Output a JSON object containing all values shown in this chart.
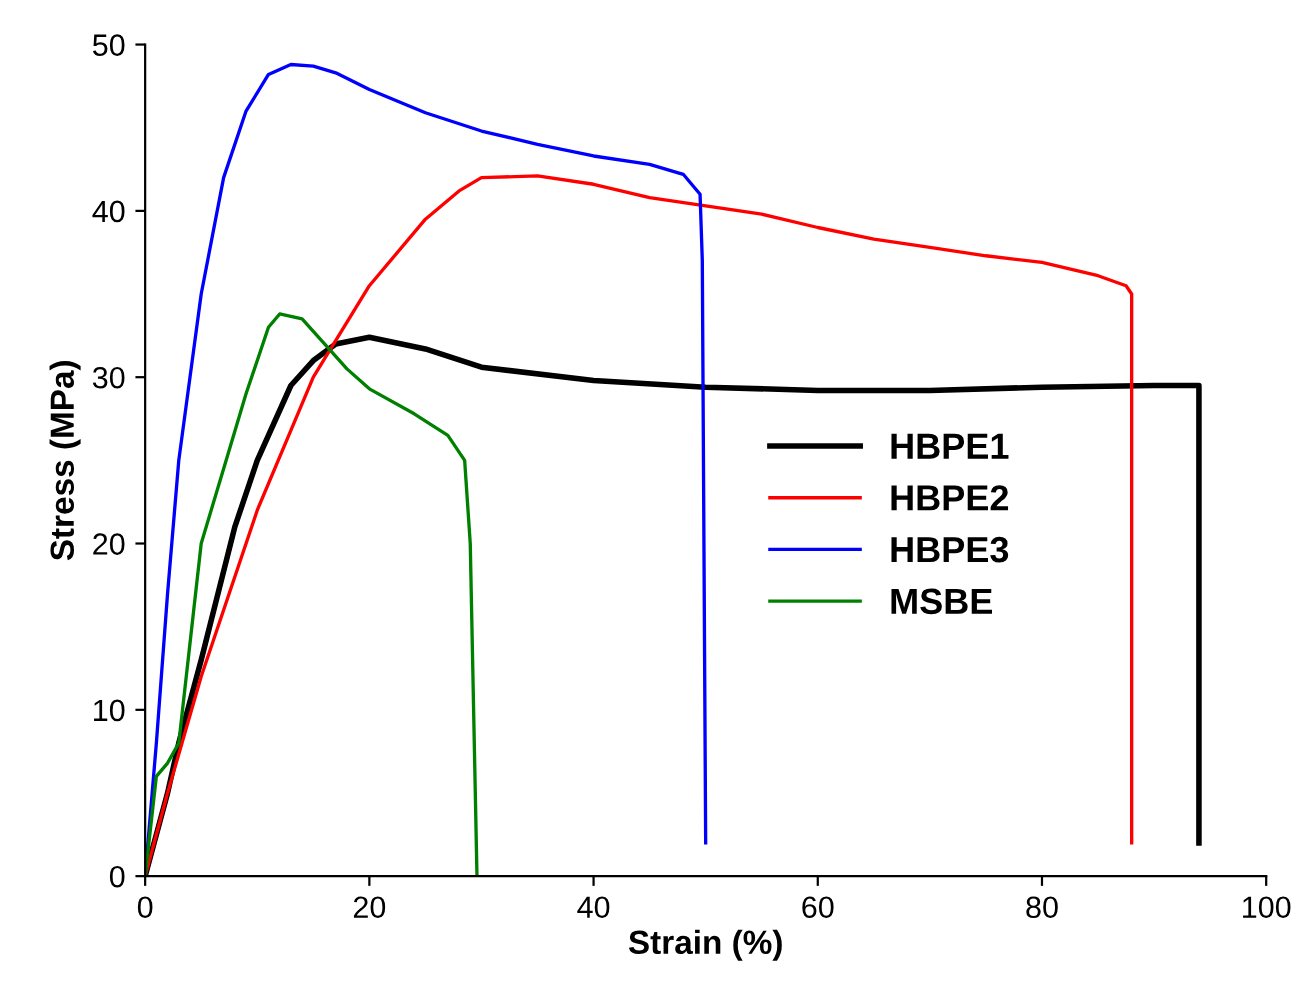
{
  "chart_data": {
    "type": "line",
    "xlabel": "Strain (%)",
    "ylabel": "Stress (MPa)",
    "xlim": [
      0,
      100
    ],
    "ylim": [
      0,
      50
    ],
    "xticks": [
      0,
      20,
      40,
      60,
      80,
      100
    ],
    "yticks": [
      0,
      10,
      20,
      30,
      40,
      50
    ],
    "grid": false,
    "legend": "right",
    "series": [
      {
        "name": "HBPE1",
        "color": "#000000",
        "x": [
          0,
          2,
          3,
          5,
          8,
          10,
          13,
          15,
          17,
          20,
          25,
          30,
          40,
          50,
          60,
          70,
          80,
          90,
          94,
          94
        ],
        "values": [
          0,
          5,
          8,
          13,
          21,
          25,
          29.5,
          31,
          32,
          32.4,
          31.7,
          30.6,
          29.8,
          29.4,
          29.2,
          29.2,
          29.4,
          29.5,
          29.5,
          2
        ]
      },
      {
        "name": "HBPE2",
        "color": "#ff0000",
        "x": [
          0,
          2,
          5,
          10,
          15,
          20,
          25,
          28,
          30,
          35,
          40,
          45,
          50,
          55,
          60,
          65,
          70,
          75,
          80,
          85,
          87.5,
          88,
          88
        ],
        "values": [
          0,
          5,
          12,
          22,
          30,
          35.5,
          39.5,
          41.2,
          42,
          42.1,
          41.6,
          40.8,
          40.3,
          39.8,
          39,
          38.3,
          37.8,
          37.3,
          36.9,
          36.1,
          35.5,
          35,
          2
        ]
      },
      {
        "name": "HBPE3",
        "color": "#0000ff",
        "x": [
          0,
          1,
          2,
          3,
          5,
          7,
          9,
          11,
          13,
          15,
          17,
          20,
          25,
          30,
          35,
          40,
          45,
          48,
          49.5,
          49.7,
          50
        ],
        "values": [
          0,
          8,
          17,
          25,
          35,
          42,
          46,
          48.2,
          48.8,
          48.7,
          48.3,
          47.3,
          45.9,
          44.8,
          44,
          43.3,
          42.8,
          42.2,
          41,
          37,
          2
        ]
      },
      {
        "name": "MSBE",
        "color": "#008000",
        "x": [
          0,
          1,
          2,
          3,
          4,
          5,
          7,
          9,
          11,
          12,
          14,
          16,
          18,
          20,
          24,
          27,
          28.5,
          29,
          29.6
        ],
        "values": [
          0,
          6,
          6.8,
          8,
          14,
          20,
          24.5,
          29,
          33,
          33.8,
          33.5,
          32,
          30.5,
          29.3,
          27.8,
          26.5,
          25,
          20,
          0
        ]
      }
    ]
  }
}
